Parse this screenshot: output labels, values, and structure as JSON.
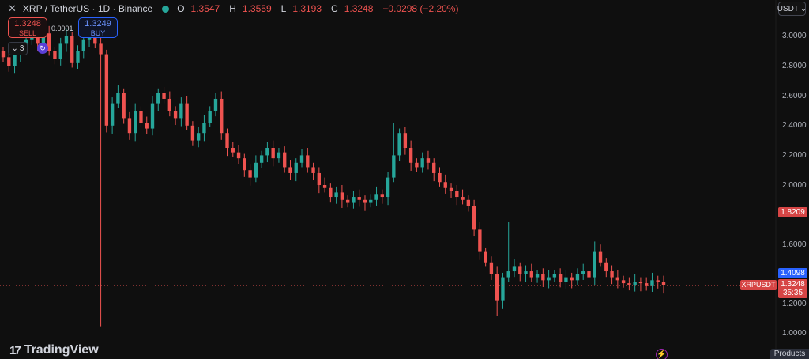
{
  "header": {
    "close_icon": "close-icon",
    "symbol": "XRP / TetherUS · 1D · Binance",
    "status_color": "#26a69a",
    "ohlc": [
      {
        "label": "O",
        "value": "1.3547"
      },
      {
        "label": "H",
        "value": "1.3559"
      },
      {
        "label": "L",
        "value": "1.3193"
      },
      {
        "label": "C",
        "value": "1.3248"
      }
    ],
    "change": "−0.0298 (−2.20%)"
  },
  "trade": {
    "sell_price": "1.3248",
    "sell_label": "SELL",
    "spread": "0.0001",
    "buy_price": "1.3249",
    "buy_label": "BUY"
  },
  "indicators": {
    "count": "3"
  },
  "currency": "USDT",
  "price_tags": {
    "high_marker": "1.8209",
    "blue_marker": "1.4098",
    "current_price": "1.3248",
    "countdown": "35:35",
    "symbol_tag": "XRPUSDT"
  },
  "brand": {
    "logo_mark": "17",
    "name": "TradingView"
  },
  "footer": {
    "products": "Products"
  },
  "colors": {
    "up": "#26a69a",
    "down": "#ef5350",
    "background": "#0f0f0f"
  },
  "chart_data": {
    "type": "candlestick",
    "symbol": "XRPUSDT",
    "interval": "1D",
    "y_ticks": [
      "3.0000",
      "2.8000",
      "2.6000",
      "2.4000",
      "2.2000",
      "2.0000",
      "1.6000",
      "1.2000",
      "1.0000"
    ],
    "ylim": [
      0.9,
      3.1
    ],
    "grid": false,
    "series": [
      {
        "name": "XRPUSDT",
        "close_path": [
          2.86,
          2.8,
          2.88,
          2.92,
          2.98,
          3.05,
          2.95,
          3.02,
          2.9,
          2.85,
          2.95,
          3.0,
          2.82,
          2.9,
          2.98,
          3.02,
          2.95,
          2.88,
          2.4,
          2.55,
          2.62,
          2.45,
          2.35,
          2.5,
          2.42,
          2.38,
          2.55,
          2.62,
          2.58,
          2.5,
          2.45,
          2.55,
          2.4,
          2.3,
          2.35,
          2.42,
          2.5,
          2.58,
          2.35,
          2.25,
          2.22,
          2.18,
          2.1,
          2.05,
          2.15,
          2.2,
          2.25,
          2.18,
          2.22,
          2.12,
          2.08,
          2.15,
          2.2,
          2.12,
          2.08,
          2.0,
          1.98,
          1.92,
          1.95,
          1.9,
          1.88,
          1.92,
          1.9,
          1.88,
          1.9,
          1.94,
          1.92,
          2.05,
          2.2,
          2.35,
          2.25,
          2.15,
          2.12,
          2.18,
          2.15,
          2.08,
          2.02,
          1.98,
          1.96,
          1.92,
          1.9,
          1.86,
          1.7,
          1.55,
          1.48,
          1.4,
          1.22,
          1.38,
          1.42,
          1.45,
          1.4,
          1.42,
          1.38,
          1.4,
          1.36,
          1.38,
          1.4,
          1.35,
          1.38,
          1.36,
          1.4,
          1.42,
          1.38,
          1.55,
          1.48,
          1.42,
          1.38,
          1.36,
          1.34,
          1.33,
          1.35,
          1.34,
          1.32,
          1.36,
          1.35,
          1.3248
        ],
        "last": {
          "open": 1.3547,
          "high": 1.3559,
          "low": 1.3193,
          "close": 1.3248
        }
      }
    ]
  }
}
